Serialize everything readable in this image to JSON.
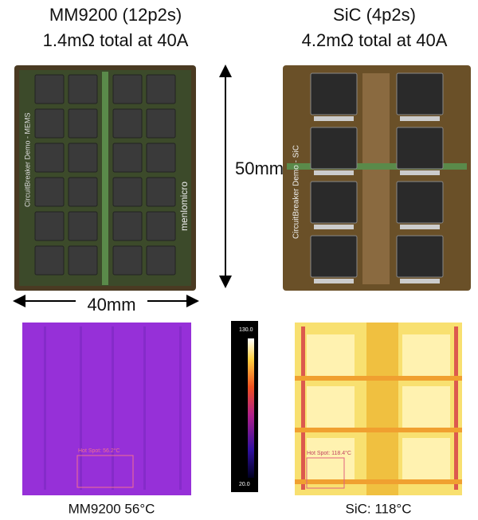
{
  "left": {
    "title": "MM9200 (12p2s)",
    "subtitle": "1.4mΩ total at 40A",
    "board_label": "CircuitBreaker Demo - MEMS",
    "brand": "menlomicro",
    "hot_spot": "Hot Spot: 56.2°C",
    "caption": "MM9200 56°C"
  },
  "right": {
    "title": "SiC (4p2s)",
    "subtitle": "4.2mΩ total at 40A",
    "board_label": "CircuitBreaker Demo - SiC",
    "hot_spot": "Hot Spot: 118.4°C",
    "caption": "SiC: 118°C"
  },
  "dimensions": {
    "height": "50mm",
    "width": "40mm"
  },
  "colorbar": {
    "max": "130.0",
    "min": "20.0"
  }
}
